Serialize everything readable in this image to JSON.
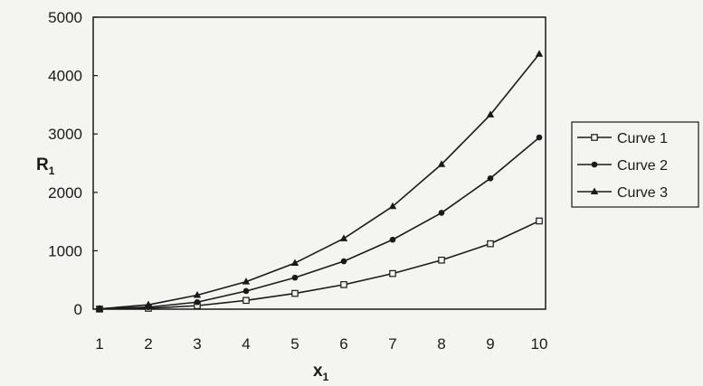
{
  "chart_data": {
    "type": "line",
    "xlabel": "x",
    "xlabel_sub": "1",
    "ylabel": "R",
    "ylabel_sub": "1",
    "x": [
      1,
      2,
      3,
      4,
      5,
      6,
      7,
      8,
      9,
      10
    ],
    "xlim": [
      1,
      10
    ],
    "ylim": [
      0,
      5000
    ],
    "yticks": [
      0,
      1000,
      2000,
      3000,
      4000,
      5000
    ],
    "grid": false,
    "legend_position": "right",
    "series": [
      {
        "name": "Curve 1",
        "marker": "square",
        "values": [
          2,
          15,
          60,
          150,
          270,
          420,
          610,
          840,
          1120,
          1510
        ]
      },
      {
        "name": "Curve 2",
        "marker": "circle",
        "values": [
          4,
          35,
          120,
          310,
          540,
          820,
          1190,
          1650,
          2240,
          2940
        ]
      },
      {
        "name": "Curve 3",
        "marker": "triangle",
        "values": [
          6,
          75,
          240,
          470,
          790,
          1210,
          1760,
          2480,
          3330,
          4370
        ]
      }
    ]
  }
}
